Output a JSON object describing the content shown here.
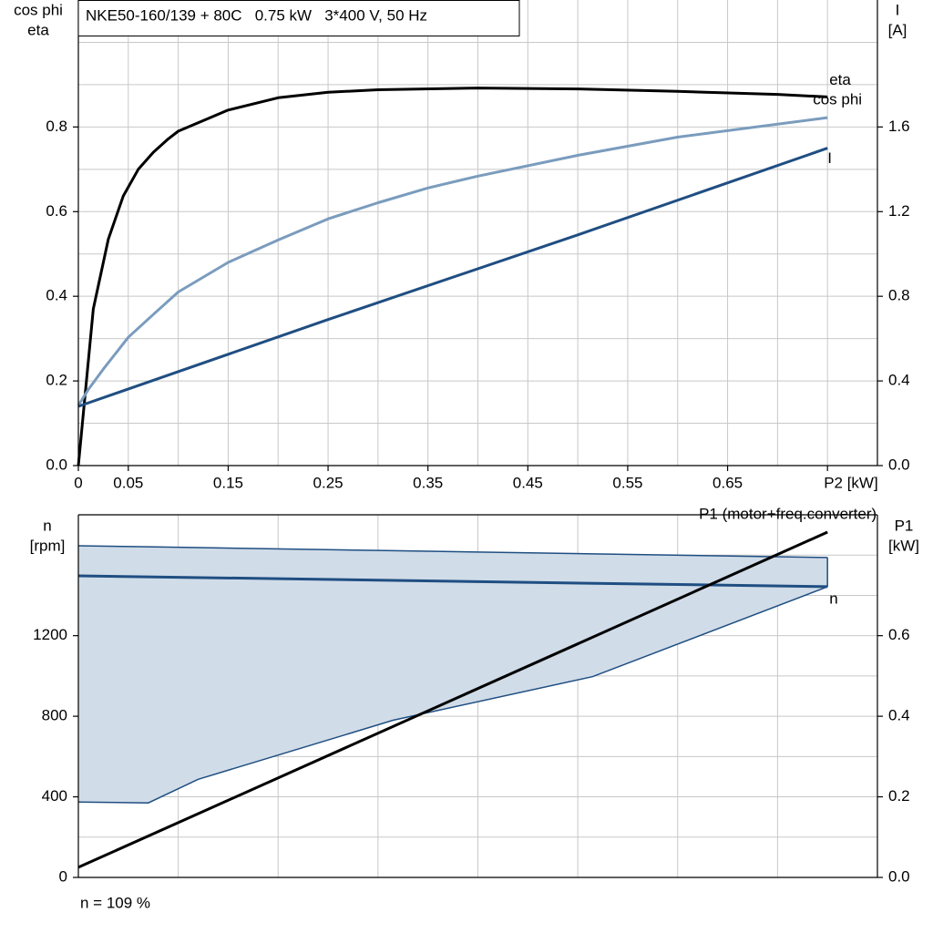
{
  "chart_data": [
    {
      "type": "line",
      "title": "NKE50-160/139 + 80C   0.75 kW   3*400 V, 50 Hz",
      "ylabel": [
        "cos phi",
        "eta"
      ],
      "y2label": [
        "I",
        "[A]"
      ],
      "xlim": [
        0,
        0.8
      ],
      "xticks": [
        0,
        0.05,
        0.15,
        0.25,
        0.35,
        0.45,
        0.55,
        0.65,
        {
          "value": 0.75,
          "label": "P2 [kW]"
        }
      ],
      "minor_xticks": [
        0.1,
        0.2,
        0.3,
        0.4,
        0.5,
        0.6,
        0.7
      ],
      "ylim": [
        0,
        1.1
      ],
      "yticks": [
        {
          "value": 0,
          "label": "0.0"
        },
        0.2,
        0.4,
        0.6,
        0.8
      ],
      "minor_yticks": [
        0.1,
        0.3,
        0.5,
        0.7,
        0.9,
        1.0
      ],
      "y2lim": [
        0,
        2.2
      ],
      "y2ticks": [
        {
          "value": 0,
          "label": "0.0"
        },
        0.4,
        0.8,
        1.2,
        1.6
      ],
      "grid": true,
      "series": [
        {
          "name": "eta",
          "color": "#000000",
          "x": [
            0,
            0.015,
            0.03,
            0.045,
            0.06,
            0.075,
            0.09,
            0.1,
            0.15,
            0.2,
            0.25,
            0.3,
            0.4,
            0.5,
            0.6,
            0.7,
            0.75
          ],
          "values": [
            0,
            0.37,
            0.535,
            0.637,
            0.7,
            0.74,
            0.772,
            0.79,
            0.84,
            0.869,
            0.882,
            0.888,
            0.892,
            0.89,
            0.884,
            0.877,
            0.871
          ]
        },
        {
          "name": "cos phi",
          "color": "#7a9cbd",
          "x": [
            0,
            0.01,
            0.025,
            0.05,
            0.075,
            0.1,
            0.15,
            0.2,
            0.25,
            0.3,
            0.35,
            0.4,
            0.5,
            0.6,
            0.75
          ],
          "values": [
            0.142,
            0.18,
            0.228,
            0.303,
            0.357,
            0.41,
            0.48,
            0.533,
            0.583,
            0.621,
            0.656,
            0.684,
            0.733,
            0.776,
            0.822
          ]
        },
        {
          "name": "I",
          "color": "#1f4e82",
          "axis": "y2",
          "x": [
            0,
            0.25,
            0.5,
            0.75
          ],
          "values": [
            0.28,
            0.69,
            1.09,
            1.5
          ]
        }
      ]
    },
    {
      "type": "line",
      "ylabel": [
        "n",
        "[rpm]"
      ],
      "y2label": [
        "P1",
        "[kW]"
      ],
      "xlim": [
        0,
        0.8
      ],
      "minor_xticks": [
        0.1,
        0.2,
        0.3,
        0.4,
        0.5,
        0.6,
        0.7
      ],
      "ylim": [
        0,
        1800
      ],
      "yticks": [
        0,
        400,
        800,
        1200
      ],
      "minor_yticks": [
        200,
        600,
        1000,
        1400,
        1600
      ],
      "y2lim": [
        0,
        0.9
      ],
      "y2ticks": [
        {
          "value": 0,
          "label": "0.0"
        },
        0.2,
        0.4,
        0.6
      ],
      "grid": true,
      "band": {
        "color": "#d0dce8",
        "edge": "#1f4e82",
        "x": [
          0,
          0.07,
          0.12,
          0.315,
          0.515,
          0.75
        ],
        "upper": [
          1646,
          1641,
          1637,
          1622,
          1606,
          1588
        ],
        "lower": [
          374,
          370,
          487,
          780,
          997,
          1443
        ]
      },
      "series": [
        {
          "name": "n",
          "color": "#1f4e82",
          "x": [
            0,
            0.75
          ],
          "values": [
            1497,
            1443
          ]
        },
        {
          "name": "P1 (motor+freq.converter)",
          "color": "#000000",
          "axis": "y2",
          "x": [
            0,
            0.75
          ],
          "values": [
            0.025,
            0.857
          ]
        }
      ],
      "footnote": "n = 109 %"
    }
  ]
}
